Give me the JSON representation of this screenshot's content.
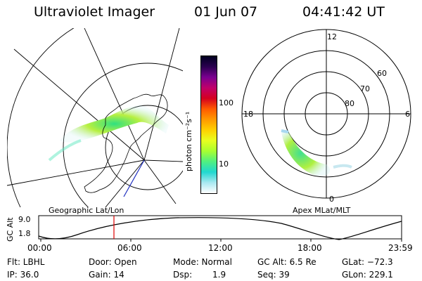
{
  "header": {
    "instrument": "Ultraviolet Imager",
    "date": "01 Jun 07",
    "time": "04:41:42 UT"
  },
  "geo_panel": {
    "label": "Geographic Lat/Lon"
  },
  "colorbar": {
    "unit_label": "photon cm⁻²s⁻¹",
    "ticks": [
      "100",
      "10"
    ],
    "colors": [
      "#000020",
      "#2a0050",
      "#7a0090",
      "#c0006a",
      "#d40020",
      "#ff5a00",
      "#ff9800",
      "#ffd000",
      "#e8ff20",
      "#a8ff30",
      "#50f080",
      "#20d8d0",
      "#a8e8f0",
      "#ffffff"
    ]
  },
  "polar_panel": {
    "label": "Apex MLat/MLT",
    "mlt_labels": {
      "top": "12",
      "left": "18",
      "right": "6",
      "bottom": "0"
    },
    "lat_labels": [
      "60",
      "70",
      "80"
    ]
  },
  "timeline": {
    "axis_label": "GC Alt",
    "y_ticks": [
      "9.0",
      "1.8"
    ],
    "x_ticks": [
      "00:00",
      "06:00",
      "12:00",
      "18:00",
      "23:59"
    ],
    "marker_time": "04:41:42"
  },
  "status": {
    "flt": "Flt: LBHL",
    "ip": "IP: 36.0",
    "door": "Door: Open",
    "gain": "Gain: 14",
    "mode": "Mode: Normal",
    "dsp_label": "Dsp:",
    "dsp_value": "1.9",
    "gc_alt": "GC Alt: 6.5 Re",
    "seq": "Seq: 39",
    "glat": "GLat: −72.3",
    "glon": "GLon: 229.1"
  }
}
